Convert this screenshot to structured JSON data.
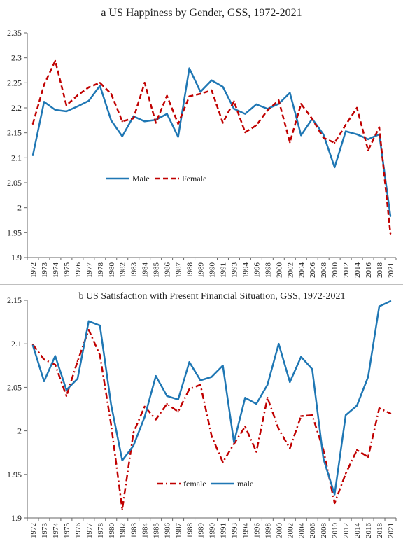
{
  "chart_data": [
    {
      "type": "line",
      "title": "a US Happiness by Gender, GSS, 1972-2021",
      "xlabel": "",
      "ylabel": "",
      "ylim": [
        1.9,
        2.35
      ],
      "yticks": [
        "1.9",
        "1.95",
        "2",
        "2.05",
        "2.1",
        "2.15",
        "2.2",
        "2.25",
        "2.3",
        "2.35"
      ],
      "grid": false,
      "legend": "center-left",
      "categories": [
        "1972",
        "1973",
        "1974",
        "1975",
        "1976",
        "1977",
        "1978",
        "1980",
        "1982",
        "1983",
        "1984",
        "1985",
        "1986",
        "1987",
        "1988",
        "1989",
        "1990",
        "1991",
        "1993",
        "1994",
        "1996",
        "1998",
        "2000",
        "2002",
        "2004",
        "2006",
        "2008",
        "2010",
        "2012",
        "2014",
        "2016",
        "2018",
        "2021"
      ],
      "series": [
        {
          "name": "Male",
          "color": "#1f77b4",
          "style": "solid",
          "values": [
            2.105,
            2.212,
            2.196,
            2.193,
            2.203,
            2.214,
            2.244,
            2.175,
            2.143,
            2.183,
            2.173,
            2.176,
            2.188,
            2.142,
            2.279,
            2.232,
            2.255,
            2.242,
            2.198,
            2.188,
            2.207,
            2.198,
            2.208,
            2.23,
            2.145,
            2.178,
            2.147,
            2.081,
            2.153,
            2.147,
            2.137,
            2.147,
            1.983
          ]
        },
        {
          "name": "Female",
          "color": "#c00000",
          "style": "dashed",
          "values": [
            2.168,
            2.246,
            2.294,
            2.205,
            2.225,
            2.241,
            2.25,
            2.228,
            2.173,
            2.179,
            2.25,
            2.17,
            2.224,
            2.168,
            2.223,
            2.228,
            2.235,
            2.17,
            2.213,
            2.151,
            2.165,
            2.195,
            2.215,
            2.131,
            2.208,
            2.178,
            2.14,
            2.13,
            2.166,
            2.2,
            2.115,
            2.161,
            1.948
          ]
        }
      ]
    },
    {
      "type": "line",
      "title": "b US Satisfaction with Present Financial Situation, GSS, 1972-2021",
      "xlabel": "",
      "ylabel": "",
      "ylim": [
        1.9,
        2.15
      ],
      "yticks": [
        "1.9",
        "1.95",
        "2",
        "2.05",
        "2.1",
        "2.15"
      ],
      "grid": false,
      "legend": "bottom-center",
      "categories": [
        "1972",
        "1973",
        "1974",
        "1975",
        "1976",
        "1977",
        "1978",
        "1980",
        "1982",
        "1983",
        "1984",
        "1985",
        "1986",
        "1987",
        "1988",
        "1989",
        "1990",
        "1991",
        "1993",
        "1994",
        "1996",
        "1998",
        "2000",
        "2002",
        "2004",
        "2006",
        "2008",
        "2010",
        "2012",
        "2014",
        "2016",
        "2018",
        "2021"
      ],
      "series": [
        {
          "name": "female",
          "color": "#c00000",
          "style": "dashdot",
          "values": [
            2.099,
            2.082,
            2.076,
            2.04,
            2.08,
            2.116,
            2.087,
            2.007,
            1.91,
            1.998,
            2.028,
            2.013,
            2.031,
            2.022,
            2.048,
            2.053,
            1.994,
            1.964,
            1.985,
            2.005,
            1.976,
            2.038,
            2.002,
            1.98,
            2.017,
            2.018,
            1.978,
            1.917,
            1.951,
            1.978,
            1.97,
            2.026,
            2.02
          ]
        },
        {
          "name": "male",
          "color": "#1f77b4",
          "style": "solid",
          "values": [
            2.098,
            2.057,
            2.086,
            2.047,
            2.06,
            2.126,
            2.121,
            2.03,
            1.966,
            1.983,
            2.016,
            2.063,
            2.04,
            2.036,
            2.079,
            2.058,
            2.062,
            2.075,
            1.987,
            2.038,
            2.031,
            2.053,
            2.1,
            2.056,
            2.085,
            2.071,
            1.968,
            1.927,
            2.018,
            2.029,
            2.062,
            2.143,
            2.149
          ]
        }
      ]
    }
  ]
}
